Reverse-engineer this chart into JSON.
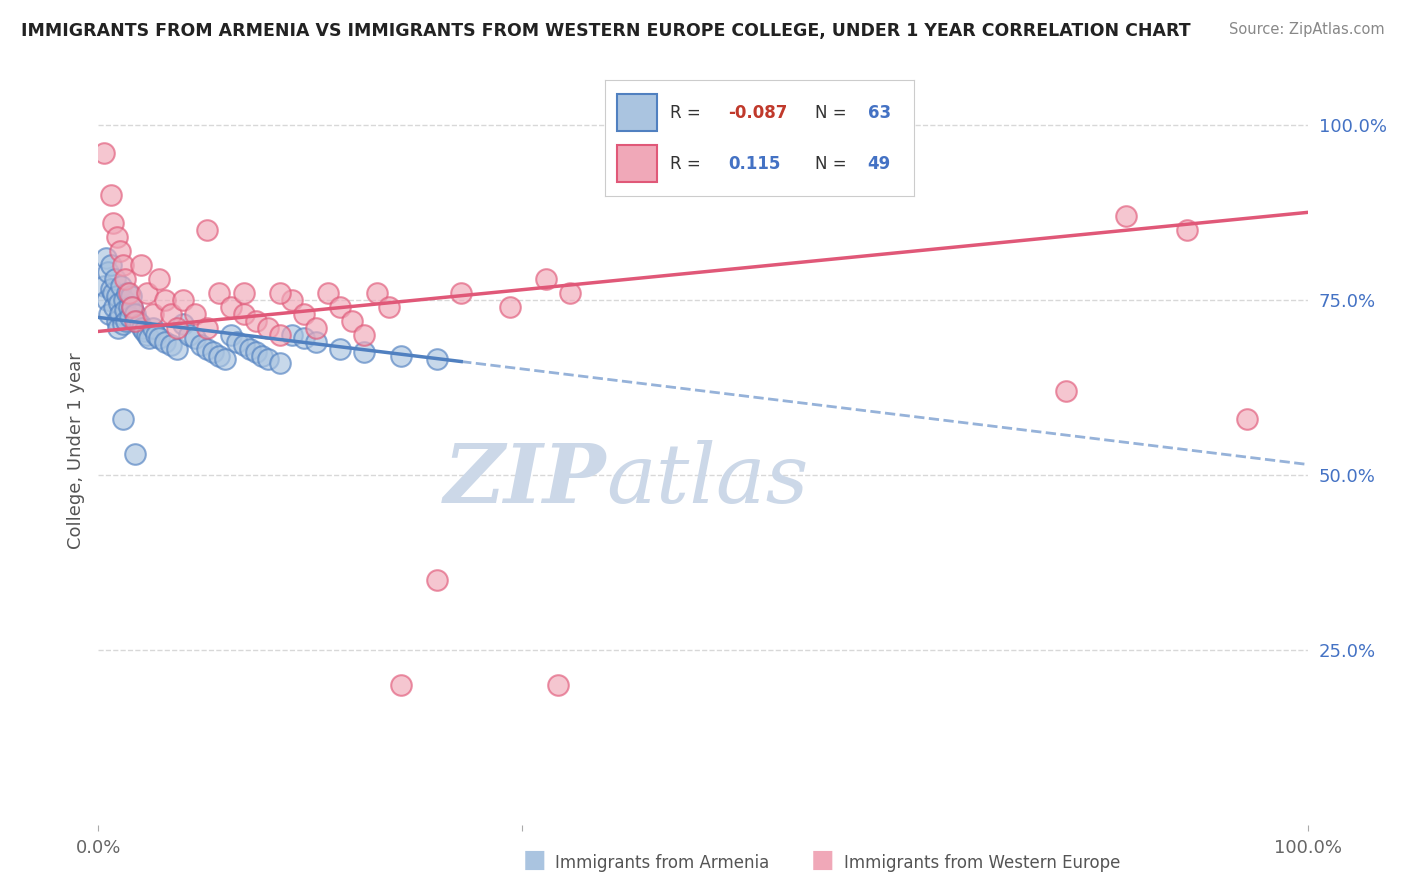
{
  "title": "IMMIGRANTS FROM ARMENIA VS IMMIGRANTS FROM WESTERN EUROPE COLLEGE, UNDER 1 YEAR CORRELATION CHART",
  "source": "Source: ZipAtlas.com",
  "ylabel": "College, Under 1 year",
  "right_yticks": [
    "100.0%",
    "75.0%",
    "50.0%",
    "25.0%"
  ],
  "right_ytick_vals": [
    1.0,
    0.75,
    0.5,
    0.25
  ],
  "blue_R": -0.087,
  "blue_N": 63,
  "pink_R": 0.115,
  "pink_N": 49,
  "blue_color": "#aac4e0",
  "pink_color": "#f0a8b8",
  "blue_line_color": "#5080c0",
  "pink_line_color": "#e05878",
  "blue_line_solid_end": 0.3,
  "blue_line_start_y": 0.725,
  "blue_line_end_y": 0.515,
  "pink_line_start_y": 0.705,
  "pink_line_end_y": 0.875,
  "blue_scatter_x": [
    0.005,
    0.006,
    0.007,
    0.008,
    0.009,
    0.01,
    0.01,
    0.012,
    0.013,
    0.014,
    0.015,
    0.015,
    0.016,
    0.017,
    0.018,
    0.019,
    0.02,
    0.021,
    0.022,
    0.023,
    0.024,
    0.025,
    0.026,
    0.027,
    0.028,
    0.03,
    0.032,
    0.034,
    0.036,
    0.038,
    0.04,
    0.042,
    0.045,
    0.048,
    0.05,
    0.055,
    0.06,
    0.065,
    0.07,
    0.075,
    0.08,
    0.085,
    0.09,
    0.095,
    0.1,
    0.105,
    0.11,
    0.115,
    0.12,
    0.125,
    0.13,
    0.135,
    0.14,
    0.15,
    0.16,
    0.17,
    0.18,
    0.2,
    0.22,
    0.25,
    0.28,
    0.02,
    0.03
  ],
  "blue_scatter_y": [
    0.77,
    0.81,
    0.75,
    0.79,
    0.73,
    0.765,
    0.8,
    0.76,
    0.74,
    0.78,
    0.72,
    0.755,
    0.71,
    0.745,
    0.73,
    0.77,
    0.715,
    0.75,
    0.735,
    0.72,
    0.76,
    0.74,
    0.725,
    0.755,
    0.74,
    0.73,
    0.72,
    0.715,
    0.71,
    0.705,
    0.7,
    0.695,
    0.71,
    0.7,
    0.695,
    0.69,
    0.685,
    0.68,
    0.715,
    0.7,
    0.695,
    0.685,
    0.68,
    0.675,
    0.67,
    0.665,
    0.7,
    0.69,
    0.685,
    0.68,
    0.675,
    0.67,
    0.665,
    0.66,
    0.7,
    0.695,
    0.69,
    0.68,
    0.675,
    0.67,
    0.665,
    0.58,
    0.53
  ],
  "pink_scatter_x": [
    0.005,
    0.01,
    0.012,
    0.015,
    0.018,
    0.02,
    0.022,
    0.025,
    0.028,
    0.03,
    0.035,
    0.04,
    0.045,
    0.05,
    0.055,
    0.06,
    0.065,
    0.07,
    0.08,
    0.09,
    0.1,
    0.11,
    0.12,
    0.13,
    0.14,
    0.15,
    0.16,
    0.17,
    0.18,
    0.19,
    0.2,
    0.21,
    0.22,
    0.23,
    0.24,
    0.25,
    0.28,
    0.3,
    0.34,
    0.37,
    0.39,
    0.8,
    0.85,
    0.9,
    0.95,
    0.38,
    0.09,
    0.12,
    0.15
  ],
  "pink_scatter_y": [
    0.96,
    0.9,
    0.86,
    0.84,
    0.82,
    0.8,
    0.78,
    0.76,
    0.74,
    0.72,
    0.8,
    0.76,
    0.73,
    0.78,
    0.75,
    0.73,
    0.71,
    0.75,
    0.73,
    0.71,
    0.76,
    0.74,
    0.73,
    0.72,
    0.71,
    0.7,
    0.75,
    0.73,
    0.71,
    0.76,
    0.74,
    0.72,
    0.7,
    0.76,
    0.74,
    0.2,
    0.35,
    0.76,
    0.74,
    0.78,
    0.76,
    0.62,
    0.87,
    0.85,
    0.58,
    0.2,
    0.85,
    0.76,
    0.76
  ],
  "xlim": [
    0.0,
    1.0
  ],
  "ylim": [
    0.0,
    1.07
  ],
  "grid_color": "#d8d8d8",
  "background_color": "#ffffff",
  "watermark_color": "#ccd8e8"
}
